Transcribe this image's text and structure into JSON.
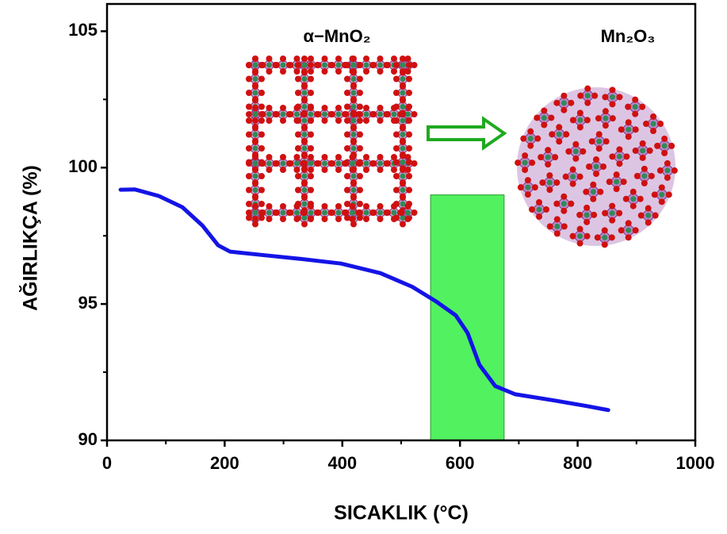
{
  "chart_data": {
    "type": "line",
    "x_label": "SICAKLIK (°C)",
    "y_label": "AĞIRLIKÇA (%)",
    "xlim": [
      0,
      1000
    ],
    "ylim": [
      90,
      106
    ],
    "xticks": [
      0,
      200,
      400,
      600,
      800,
      1000
    ],
    "yticks": [
      90,
      95,
      100,
      105
    ],
    "xticks_minor": [
      100,
      300,
      500,
      700,
      900
    ],
    "yticks_minor": [
      92.5,
      97.5,
      102.5
    ],
    "x": [
      23,
      47,
      88,
      128,
      162,
      189,
      209,
      263,
      330,
      398,
      465,
      519,
      559,
      593,
      613,
      633,
      660,
      694,
      761,
      815,
      852
    ],
    "series": [
      {
        "color": "#1414e6",
        "values": [
          99.19,
          99.2,
          98.96,
          98.55,
          97.88,
          97.15,
          96.92,
          96.8,
          96.65,
          96.48,
          96.13,
          95.63,
          95.1,
          94.58,
          93.94,
          92.77,
          91.99,
          91.69,
          91.46,
          91.26,
          91.11
        ]
      }
    ],
    "highlight_band": {
      "x": [
        550,
        675
      ],
      "y": [
        90,
        99
      ],
      "color": "#33ee44"
    },
    "annotations": [
      {
        "text": "α−MnO₂",
        "color": "#111111"
      },
      {
        "text": "Mn₂O₃",
        "color": "#e01010"
      }
    ]
  }
}
